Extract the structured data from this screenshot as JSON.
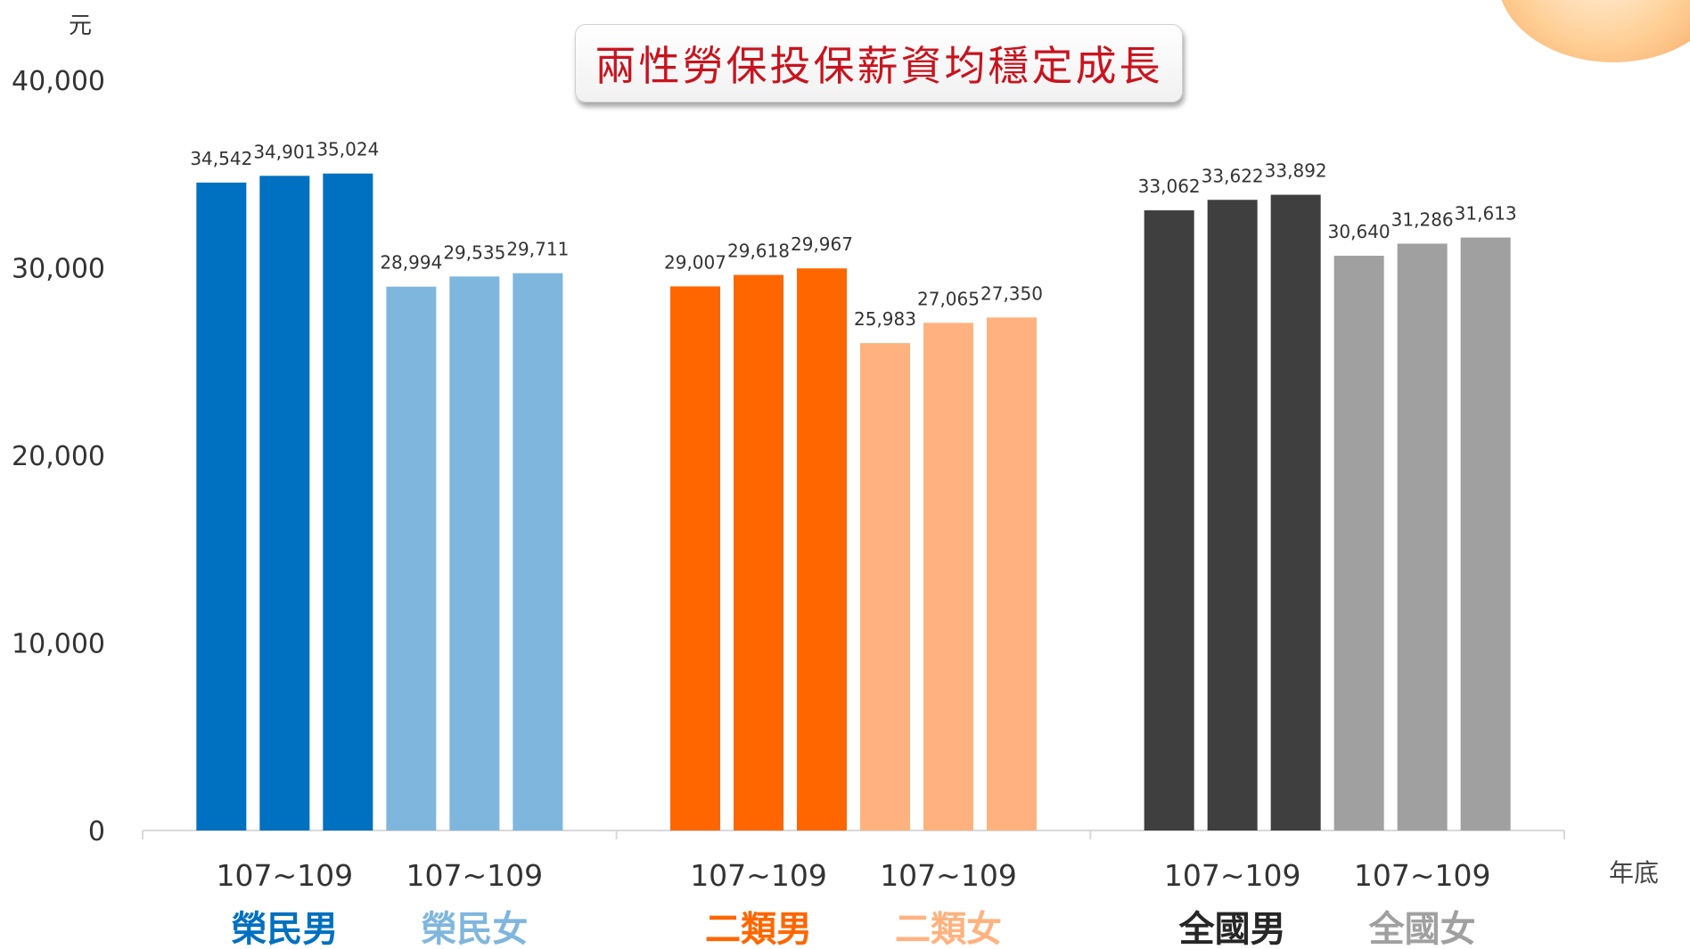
{
  "title": "兩性勞保投保薪資均穩定成長",
  "unit_label": "元",
  "x_axis_right_label": "年底",
  "colors": {
    "title": "#c8141e",
    "axis": "#d9d9d9"
  },
  "chart_data": {
    "type": "bar",
    "ylim": [
      0,
      40000
    ],
    "yticks": [
      "0",
      "10,000",
      "20,000",
      "30,000",
      "40,000"
    ],
    "ytick_values": [
      0,
      10000,
      20000,
      30000,
      40000
    ],
    "groups": [
      {
        "series": [
          {
            "name": "榮民男",
            "range_label": "107~109",
            "color": "#0070c0",
            "label_color": "#0070c0",
            "years": [
              "107",
              "108",
              "109"
            ],
            "values": [
              34542,
              34901,
              35024
            ],
            "value_labels": [
              "34,542",
              "34,901",
              "35,024"
            ]
          },
          {
            "name": "榮民女",
            "range_label": "107~109",
            "color": "#7fb6de",
            "label_color": "#7fb6de",
            "years": [
              "107",
              "108",
              "109"
            ],
            "values": [
              28994,
              29535,
              29711
            ],
            "value_labels": [
              "28,994",
              "29,535",
              "29,711"
            ]
          }
        ]
      },
      {
        "series": [
          {
            "name": "二類男",
            "range_label": "107~109",
            "color": "#ff6600",
            "label_color": "#ff6600",
            "years": [
              "107",
              "108",
              "109"
            ],
            "values": [
              29007,
              29618,
              29967
            ],
            "value_labels": [
              "29,007",
              "29,618",
              "29,967"
            ]
          },
          {
            "name": "二類女",
            "range_label": "107~109",
            "color": "#ffb27f",
            "label_color": "#ffb27f",
            "years": [
              "107",
              "108",
              "109"
            ],
            "values": [
              25983,
              27065,
              27350
            ],
            "value_labels": [
              "25,983",
              "27,065",
              "27,350"
            ]
          }
        ]
      },
      {
        "series": [
          {
            "name": "全國男",
            "range_label": "107~109",
            "color": "#3f3f3f",
            "label_color": "#262626",
            "years": [
              "107",
              "108",
              "109"
            ],
            "values": [
              33062,
              33622,
              33892
            ],
            "value_labels": [
              "33,062",
              "33,622",
              "33,892"
            ]
          },
          {
            "name": "全國女",
            "range_label": "107~109",
            "color": "#a0a0a0",
            "label_color": "#a0a0a0",
            "years": [
              "107",
              "108",
              "109"
            ],
            "values": [
              30640,
              31286,
              31613
            ],
            "value_labels": [
              "30,640",
              "31,286",
              "31,613"
            ]
          }
        ]
      }
    ]
  }
}
